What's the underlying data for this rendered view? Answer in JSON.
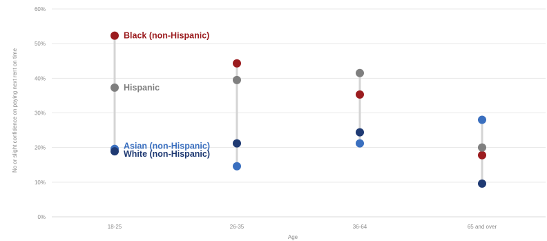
{
  "chart_data": {
    "type": "scatter",
    "xlabel": "Age",
    "ylabel": "No or slight confidence on paying next rent on time",
    "ylim": [
      0,
      60
    ],
    "yticks": [
      0,
      10,
      20,
      30,
      40,
      50,
      60
    ],
    "ytick_labels": [
      "0%",
      "10%",
      "20%",
      "30%",
      "40%",
      "50%",
      "60%"
    ],
    "categories": [
      "18-25",
      "26-35",
      "36-64",
      "65 and over"
    ],
    "grid": true,
    "legend": "inline labels at left category",
    "series": [
      {
        "name": "Black (non-Hispanic)",
        "color": "#9b1c1f",
        "values": [
          52.3,
          44.3,
          35.3,
          17.8
        ]
      },
      {
        "name": "Hispanic",
        "color": "#7f7f7f",
        "values": [
          37.3,
          39.5,
          41.5,
          20.0
        ]
      },
      {
        "name": "Asian (non-Hispanic)",
        "color": "#3a6fbf",
        "values": [
          19.6,
          14.6,
          21.2,
          28.0
        ]
      },
      {
        "name": "White (non-Hispanic)",
        "color": "#1f3a73",
        "values": [
          18.9,
          21.2,
          24.4,
          9.6
        ]
      }
    ]
  }
}
